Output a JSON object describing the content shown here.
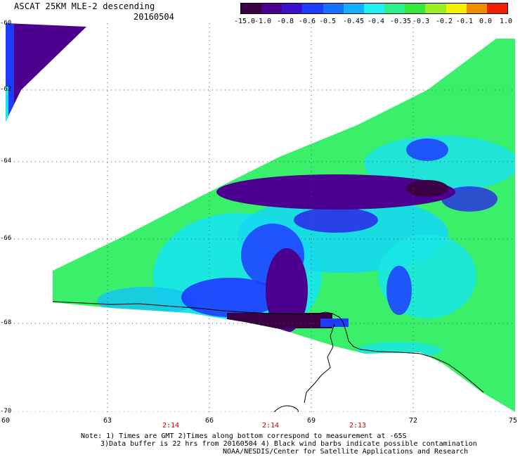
{
  "header": {
    "title": "ASCAT 25KM MLE-2 descending",
    "date": "20160504"
  },
  "colorbar": {
    "labels": [
      "-15.0",
      "-1.0",
      "-0.8",
      "-0.6",
      "-0.5",
      "-0.45",
      "-0.4",
      "-0.35",
      "-0.3",
      "-0.2",
      "-0.1",
      "0.0",
      "1.0"
    ],
    "colors": [
      "#3a0044",
      "#4b0090",
      "#3a10c8",
      "#1e3cff",
      "#1470ff",
      "#12b0ff",
      "#1ef0f0",
      "#2cf08c",
      "#36e83a",
      "#9aee22",
      "#f4f000",
      "#f08c00",
      "#f02000"
    ]
  },
  "map": {
    "lat_labels": [
      "-60",
      "-62",
      "-64",
      "-66",
      "-68",
      "-70"
    ],
    "lon_labels": [
      "60",
      "63",
      "66",
      "69",
      "72",
      "75"
    ],
    "time_labels": [
      "2:14",
      "2:14",
      "2:13"
    ]
  },
  "notes": {
    "line1": "Note: 1) Times are GMT 2)Times along bottom correspond to measurement at -65S",
    "line2": "3)Data buffer is 22 hrs from 20160504 4) Black wind barbs indicate possible contamination",
    "line3": "NOAA/NESDIS/Center for Satellite Applications and Research"
  }
}
